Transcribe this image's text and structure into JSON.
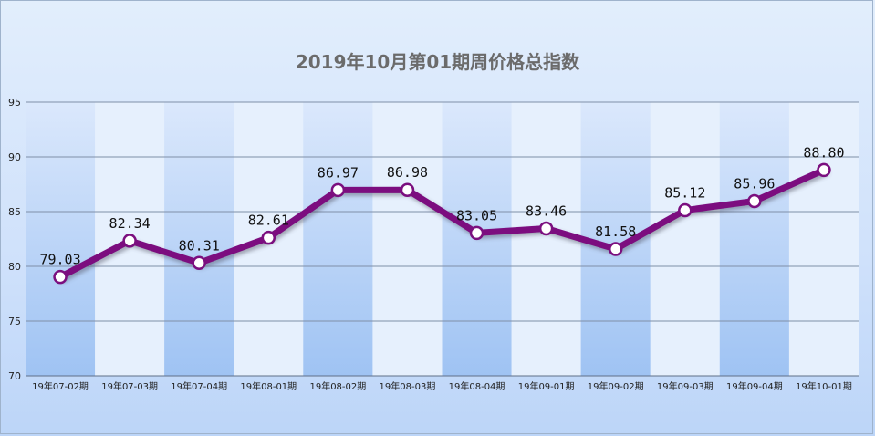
{
  "chart_data": {
    "type": "line",
    "title": "2019年10月第01期周价格总指数",
    "categories": [
      "19年07-02期",
      "19年07-03期",
      "19年07-04期",
      "19年08-01期",
      "19年08-02期",
      "19年08-03期",
      "19年08-04期",
      "19年09-01期",
      "19年09-02期",
      "19年09-03期",
      "19年09-04期",
      "19年10-01期"
    ],
    "series": [
      {
        "values": [
          79.03,
          82.34,
          80.31,
          82.61,
          86.97,
          86.98,
          83.05,
          83.46,
          81.58,
          85.12,
          85.96,
          88.8
        ]
      }
    ],
    "data_labels": [
      "79.03",
      "82.34",
      "80.31",
      "82.61",
      "86.97",
      "86.98",
      "83.05",
      "83.46",
      "81.58",
      "85.12",
      "85.96",
      "88.80"
    ],
    "ylim": [
      70,
      95
    ],
    "yticks": [
      70,
      75,
      80,
      85,
      90,
      95
    ],
    "grid": true,
    "xlabel": "",
    "ylabel": "",
    "colors": {
      "line": "#7b0f7f",
      "marker_fill": "#ffffff",
      "gridline": "#7f8fa8",
      "band_dark": "#c6dcfa",
      "band_light": "#e6f0fd"
    }
  }
}
